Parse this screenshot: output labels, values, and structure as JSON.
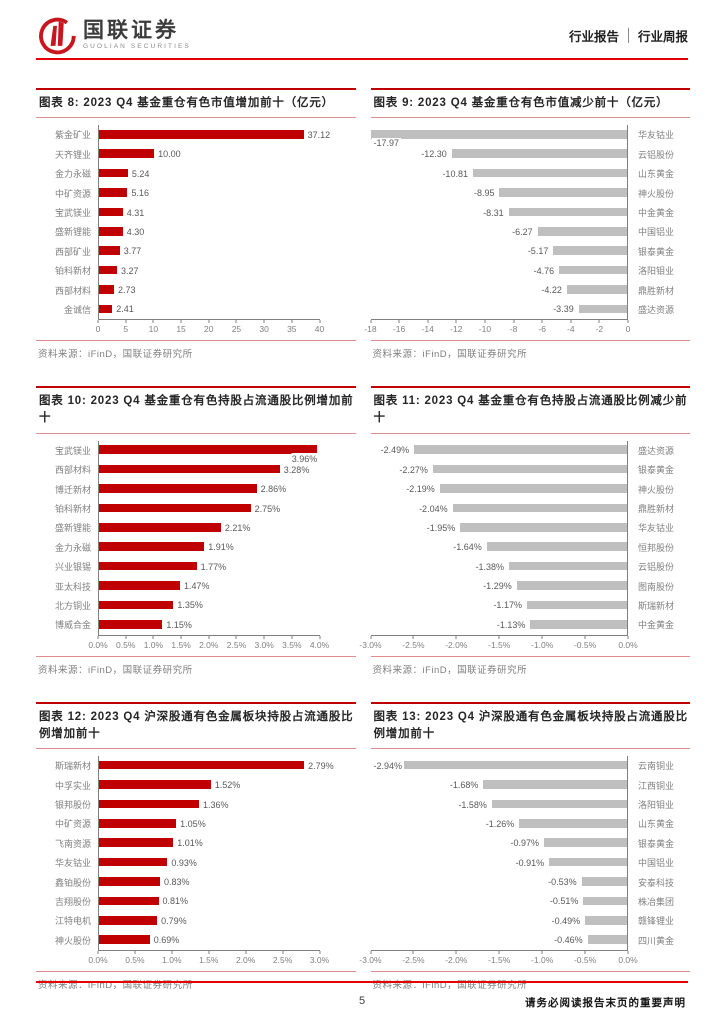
{
  "header": {
    "brand_cn": "国联证券",
    "brand_en": "GUOLIAN SECURITIES",
    "doc_type": "行业报告",
    "doc_subtype": "行业周报"
  },
  "footer": {
    "page_number": "5",
    "disclaimer": "请务必阅读报告末页的重要声明"
  },
  "colors": {
    "accent_red": "#c00000",
    "rule_red": "#e60000",
    "pink_border": "#dd8f8f",
    "bar_red": "#c00000",
    "bar_gray": "#bfbfbf",
    "axis_gray": "#7f7f7f",
    "tick_text": "#808080",
    "value_text": "#595959",
    "title_text": "#262626"
  },
  "chart_data": [
    {
      "id": "chart-8",
      "type": "bar",
      "orientation": "horizontal",
      "direction": "positive",
      "title": "图表 8: 2023 Q4 基金重仓有色市值增加前十（亿元）",
      "categories": [
        "紫金矿业",
        "天齐锂业",
        "金力永磁",
        "中矿资源",
        "宝武镁业",
        "盛新锂能",
        "西部矿业",
        "铂科新材",
        "西部材料",
        "金诚信"
      ],
      "values": [
        37.12,
        10.0,
        5.24,
        5.16,
        4.31,
        4.3,
        3.77,
        3.27,
        2.73,
        2.41
      ],
      "labels": [
        "37.12",
        "10.00",
        "5.24",
        "5.16",
        "4.31",
        "4.30",
        "3.77",
        "3.27",
        "2.73",
        "2.41"
      ],
      "xlim": [
        0,
        40
      ],
      "xticks": [
        "0",
        "5",
        "10",
        "15",
        "20",
        "25",
        "30",
        "35",
        "40"
      ],
      "bar_color": "#c00000",
      "label_below_rows": [],
      "source": "资料来源：iFinD，国联证券研究所"
    },
    {
      "id": "chart-9",
      "type": "bar",
      "orientation": "horizontal",
      "direction": "negative",
      "title": "图表 9: 2023 Q4 基金重仓有色市值减少前十（亿元）",
      "categories": [
        "华友钴业",
        "云铝股份",
        "山东黄金",
        "神火股份",
        "中金黄金",
        "中国铝业",
        "银泰黄金",
        "洛阳钼业",
        "鼎胜新材",
        "盛达资源"
      ],
      "values": [
        -17.97,
        -12.3,
        -10.81,
        -8.95,
        -8.31,
        -6.27,
        -5.17,
        -4.76,
        -4.22,
        -3.39
      ],
      "labels": [
        "-17.97",
        "-12.30",
        "-10.81",
        "-8.95",
        "-8.31",
        "-6.27",
        "-5.17",
        "-4.76",
        "-4.22",
        "-3.39"
      ],
      "xlim": [
        -18,
        0
      ],
      "xticks": [
        "-18",
        "-16",
        "-14",
        "-12",
        "-10",
        "-8",
        "-6",
        "-4",
        "-2",
        "0"
      ],
      "bar_color": "#bfbfbf",
      "label_below_rows": [
        0
      ],
      "source": "资料来源：iFinD，国联证券研究所"
    },
    {
      "id": "chart-10",
      "type": "bar",
      "orientation": "horizontal",
      "direction": "positive",
      "title": "图表 10: 2023 Q4 基金重仓有色持股占流通股比例增加前十",
      "categories": [
        "宝武镁业",
        "西部材料",
        "博迁新材",
        "铂科新材",
        "盛新锂能",
        "金力永磁",
        "兴业银锡",
        "亚太科技",
        "北方铜业",
        "博威合金"
      ],
      "values": [
        3.96,
        3.28,
        2.86,
        2.75,
        2.21,
        1.91,
        1.77,
        1.47,
        1.35,
        1.15
      ],
      "labels": [
        "3.96%",
        "3.28%",
        "2.86%",
        "2.75%",
        "2.21%",
        "1.91%",
        "1.77%",
        "1.47%",
        "1.35%",
        "1.15%"
      ],
      "xlim": [
        0,
        4
      ],
      "xticks": [
        "0.0%",
        "0.5%",
        "1.0%",
        "1.5%",
        "2.0%",
        "2.5%",
        "3.0%",
        "3.5%",
        "4.0%"
      ],
      "bar_color": "#c00000",
      "label_below_rows": [
        0
      ],
      "source": "资料来源：iFinD，国联证券研究所"
    },
    {
      "id": "chart-11",
      "type": "bar",
      "orientation": "horizontal",
      "direction": "negative",
      "title": "图表 11: 2023 Q4 基金重仓有色持股占流通股比例减少前十",
      "categories": [
        "盛达资源",
        "银泰黄金",
        "神火股份",
        "鼎胜新材",
        "华友钴业",
        "恒邦股份",
        "云铝股份",
        "图南股份",
        "斯瑞新材",
        "中金黄金"
      ],
      "values": [
        -2.49,
        -2.27,
        -2.19,
        -2.04,
        -1.95,
        -1.64,
        -1.38,
        -1.29,
        -1.17,
        -1.13
      ],
      "labels": [
        "-2.49%",
        "-2.27%",
        "-2.19%",
        "-2.04%",
        "-1.95%",
        "-1.64%",
        "-1.38%",
        "-1.29%",
        "-1.17%",
        "-1.13%"
      ],
      "xlim": [
        -3,
        0
      ],
      "xticks": [
        "-3.0%",
        "-2.5%",
        "-2.0%",
        "-1.5%",
        "-1.0%",
        "-0.5%",
        "0.0%"
      ],
      "bar_color": "#bfbfbf",
      "label_below_rows": [],
      "source": "资料来源：iFinD，国联证券研究所"
    },
    {
      "id": "chart-12",
      "type": "bar",
      "orientation": "horizontal",
      "direction": "positive",
      "title": "图表 12: 2023 Q4 沪深股通有色金属板块持股占流通股比例增加前十",
      "categories": [
        "斯瑞新材",
        "中孚实业",
        "银邦股份",
        "中矿资源",
        "飞南资源",
        "华友钴业",
        "鑫铂股份",
        "吉翔股份",
        "江特电机",
        "神火股份"
      ],
      "values": [
        2.79,
        1.52,
        1.36,
        1.05,
        1.01,
        0.93,
        0.83,
        0.81,
        0.79,
        0.69
      ],
      "labels": [
        "2.79%",
        "1.52%",
        "1.36%",
        "1.05%",
        "1.01%",
        "0.93%",
        "0.83%",
        "0.81%",
        "0.79%",
        "0.69%"
      ],
      "xlim": [
        0,
        3
      ],
      "xticks": [
        "0.0%",
        "0.5%",
        "1.0%",
        "1.5%",
        "2.0%",
        "2.5%",
        "3.0%"
      ],
      "bar_color": "#c00000",
      "label_below_rows": [],
      "source": "资料来源：iFinD，国联证券研究所"
    },
    {
      "id": "chart-13",
      "type": "bar",
      "orientation": "horizontal",
      "direction": "negative",
      "title": "图表 13: 2023 Q4 沪深股通有色金属板块持股占流通股比例增加前十",
      "categories": [
        "云南铜业",
        "江西铜业",
        "洛阳钼业",
        "山东黄金",
        "银泰黄金",
        "中国铝业",
        "安泰科技",
        "株冶集团",
        "赣锋锂业",
        "四川黄金"
      ],
      "values": [
        -2.94,
        -1.68,
        -1.58,
        -1.26,
        -0.97,
        -0.91,
        -0.53,
        -0.51,
        -0.49,
        -0.46
      ],
      "labels": [
        "-2.94%",
        "-1.68%",
        "-1.58%",
        "-1.26%",
        "-0.97%",
        "-0.91%",
        "-0.53%",
        "-0.51%",
        "-0.49%",
        "-0.46%"
      ],
      "xlim": [
        -3,
        0
      ],
      "xticks": [
        "-3.0%",
        "-2.5%",
        "-2.0%",
        "-1.5%",
        "-1.0%",
        "-0.5%",
        "0.0%"
      ],
      "bar_color": "#bfbfbf",
      "label_below_rows": [],
      "source": "资料来源：iFinD，国联证券研究所"
    }
  ]
}
